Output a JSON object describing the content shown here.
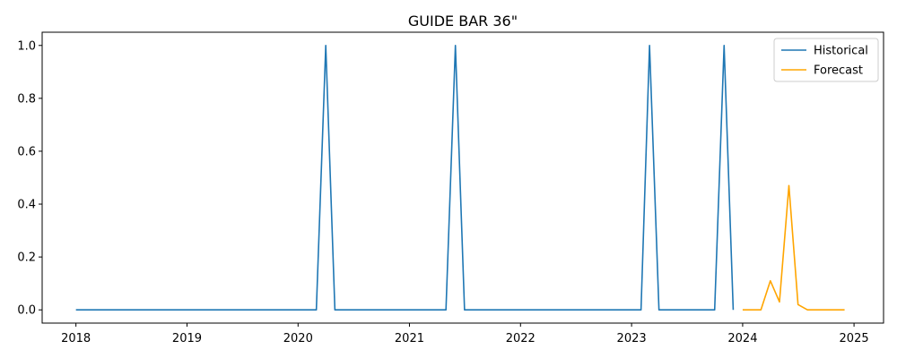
{
  "chart_data": {
    "type": "line",
    "title": "GUIDE BAR 36\"",
    "xlabel": "",
    "ylabel": "",
    "x_ticks": [
      "2018",
      "2019",
      "2020",
      "2021",
      "2022",
      "2023",
      "2024",
      "2025"
    ],
    "y_ticks": [
      "0.0",
      "0.2",
      "0.4",
      "0.6",
      "0.8",
      "1.0"
    ],
    "xlim": [
      "2017-09-12",
      "2025-04-08"
    ],
    "ylim": [
      -0.05,
      1.05
    ],
    "grid": false,
    "legend_position": "top-right",
    "series": [
      {
        "name": "Historical",
        "color": "#1f77b4",
        "x": [
          "2018-01-01",
          "2018-02-01",
          "2018-03-01",
          "2018-04-01",
          "2018-05-01",
          "2018-06-01",
          "2018-07-01",
          "2018-08-01",
          "2018-09-01",
          "2018-10-01",
          "2018-11-01",
          "2018-12-01",
          "2019-01-01",
          "2019-02-01",
          "2019-03-01",
          "2019-04-01",
          "2019-05-01",
          "2019-06-01",
          "2019-07-01",
          "2019-08-01",
          "2019-09-01",
          "2019-10-01",
          "2019-11-01",
          "2019-12-01",
          "2020-01-01",
          "2020-02-01",
          "2020-03-01",
          "2020-04-01",
          "2020-05-01",
          "2020-06-01",
          "2020-07-01",
          "2020-08-01",
          "2020-09-01",
          "2020-10-01",
          "2020-11-01",
          "2020-12-01",
          "2021-01-01",
          "2021-02-01",
          "2021-03-01",
          "2021-04-01",
          "2021-05-01",
          "2021-06-01",
          "2021-07-01",
          "2021-08-01",
          "2021-09-01",
          "2021-10-01",
          "2021-11-01",
          "2021-12-01",
          "2022-01-01",
          "2022-02-01",
          "2022-03-01",
          "2022-04-01",
          "2022-05-01",
          "2022-06-01",
          "2022-07-01",
          "2022-08-01",
          "2022-09-01",
          "2022-10-01",
          "2022-11-01",
          "2022-12-01",
          "2023-01-01",
          "2023-02-01",
          "2023-03-01",
          "2023-04-01",
          "2023-05-01",
          "2023-06-01",
          "2023-07-01",
          "2023-08-01",
          "2023-09-01",
          "2023-10-01",
          "2023-11-01",
          "2023-12-01"
        ],
        "values": [
          0,
          0,
          0,
          0,
          0,
          0,
          0,
          0,
          0,
          0,
          0,
          0,
          0,
          0,
          0,
          0,
          0,
          0,
          0,
          0,
          0,
          0,
          0,
          0,
          0,
          0,
          0,
          1,
          0,
          0,
          0,
          0,
          0,
          0,
          0,
          0,
          0,
          0,
          0,
          0,
          0,
          1,
          0,
          0,
          0,
          0,
          0,
          0,
          0,
          0,
          0,
          0,
          0,
          0,
          0,
          0,
          0,
          0,
          0,
          0,
          0,
          0,
          1,
          0,
          0,
          0,
          0,
          0,
          0,
          0,
          1,
          0
        ]
      },
      {
        "name": "Forecast",
        "color": "#ffa500",
        "x": [
          "2024-01-01",
          "2024-02-01",
          "2024-03-01",
          "2024-04-01",
          "2024-05-01",
          "2024-06-01",
          "2024-07-01",
          "2024-08-01",
          "2024-09-01",
          "2024-10-01",
          "2024-11-01",
          "2024-12-01"
        ],
        "values": [
          0,
          0,
          0,
          0.11,
          0.03,
          0.47,
          0.02,
          0,
          0,
          0,
          0,
          0
        ]
      }
    ]
  }
}
